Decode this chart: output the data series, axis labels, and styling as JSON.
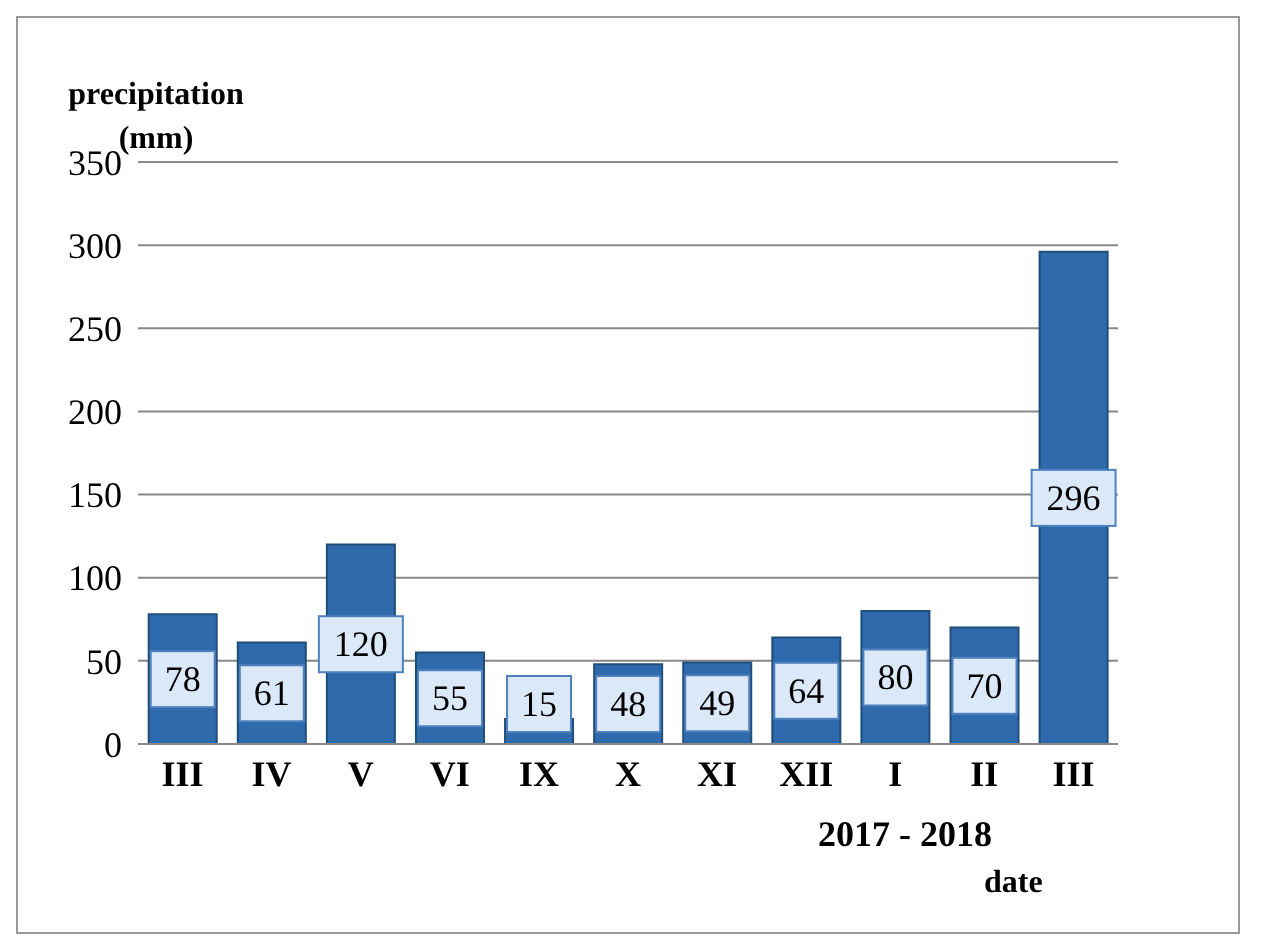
{
  "chart_data": {
    "type": "bar",
    "ylabel": "precipitation (mm)",
    "xlabel": "date",
    "annotations": [
      "2017 - 2018"
    ],
    "categories": [
      "III",
      "IV",
      "V",
      "VI",
      "IX",
      "X",
      "XI",
      "XII",
      "I",
      "II",
      "III"
    ],
    "values": [
      78,
      61,
      120,
      55,
      15,
      48,
      49,
      64,
      80,
      70,
      296
    ],
    "color": "#2f6aad",
    "ylim": [
      0,
      350
    ],
    "yticks": [
      0,
      50,
      100,
      150,
      200,
      250,
      300,
      350
    ],
    "grid": "y",
    "data_labels": true
  }
}
